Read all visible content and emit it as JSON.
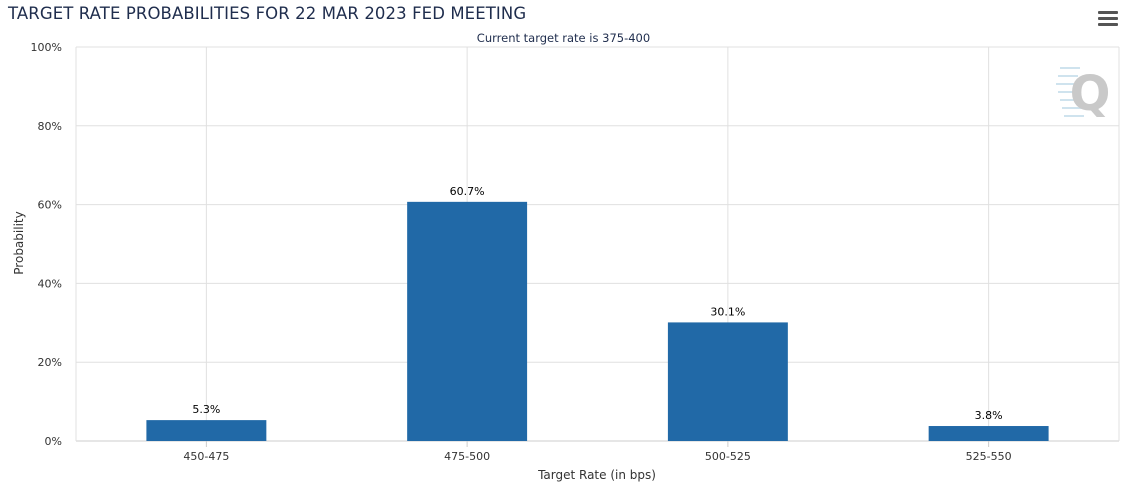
{
  "header": {
    "title": "TARGET RATE PROBABILITIES FOR 22 MAR 2023 FED MEETING",
    "subtitle": "Current target rate is 375-400",
    "menu_icon": "hamburger-menu-icon"
  },
  "watermark": {
    "letter": "Q"
  },
  "colors": {
    "bar": "#2169a7",
    "grid": "#e0e0e0",
    "text": "#1f2d4d"
  },
  "chart_data": {
    "type": "bar",
    "title": "TARGET RATE PROBABILITIES FOR 22 MAR 2023 FED MEETING",
    "subtitle": "Current target rate is 375-400",
    "xlabel": "Target Rate (in bps)",
    "ylabel": "Probability",
    "categories": [
      "450-475",
      "475-500",
      "500-525",
      "525-550"
    ],
    "values": [
      5.3,
      60.7,
      30.1,
      3.8
    ],
    "data_labels": [
      "5.3%",
      "60.7%",
      "30.1%",
      "3.8%"
    ],
    "ylim": [
      0,
      100
    ],
    "yticks": [
      0,
      20,
      40,
      60,
      80,
      100
    ],
    "ytick_labels": [
      "0%",
      "20%",
      "40%",
      "60%",
      "80%",
      "100%"
    ],
    "grid": true,
    "legend": "none"
  }
}
